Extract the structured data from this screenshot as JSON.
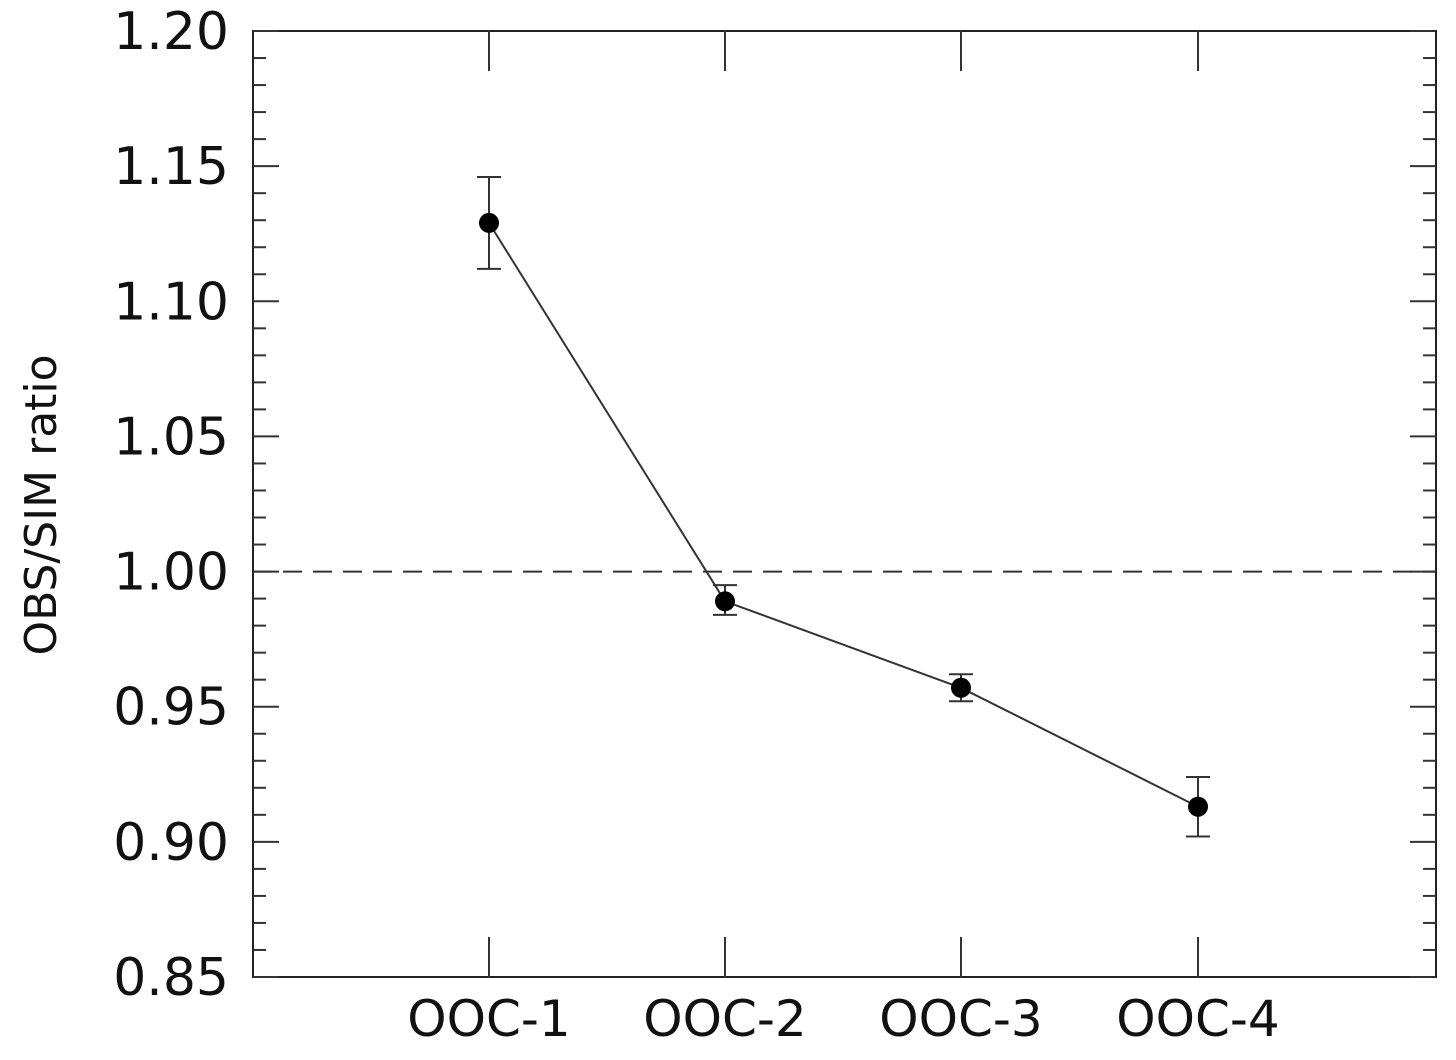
{
  "chart_data": {
    "type": "line",
    "title": "",
    "xlabel": "",
    "ylabel": "OBS/SIM ratio",
    "categories": [
      "OOC-1",
      "OOC-2",
      "OOC-3",
      "OOC-4"
    ],
    "series": [
      {
        "values": [
          1.129,
          0.989,
          0.957,
          0.913
        ],
        "error_low": [
          1.112,
          0.984,
          0.952,
          0.902
        ],
        "error_high": [
          1.146,
          0.995,
          0.962,
          0.924
        ],
        "marker": "circle",
        "color": "#000000"
      }
    ],
    "ylim": [
      0.85,
      1.2
    ],
    "yticks": [
      0.85,
      0.9,
      0.95,
      1.0,
      1.05,
      1.1,
      1.15,
      1.2
    ],
    "ytick_labels": [
      "0.85",
      "0.90",
      "0.95",
      "1.00",
      "1.05",
      "1.10",
      "1.15",
      "1.20"
    ],
    "y_minor_step": 0.01,
    "reference_line": {
      "y": 1.0,
      "style": "dashed"
    },
    "grid": false,
    "legend": "none"
  }
}
